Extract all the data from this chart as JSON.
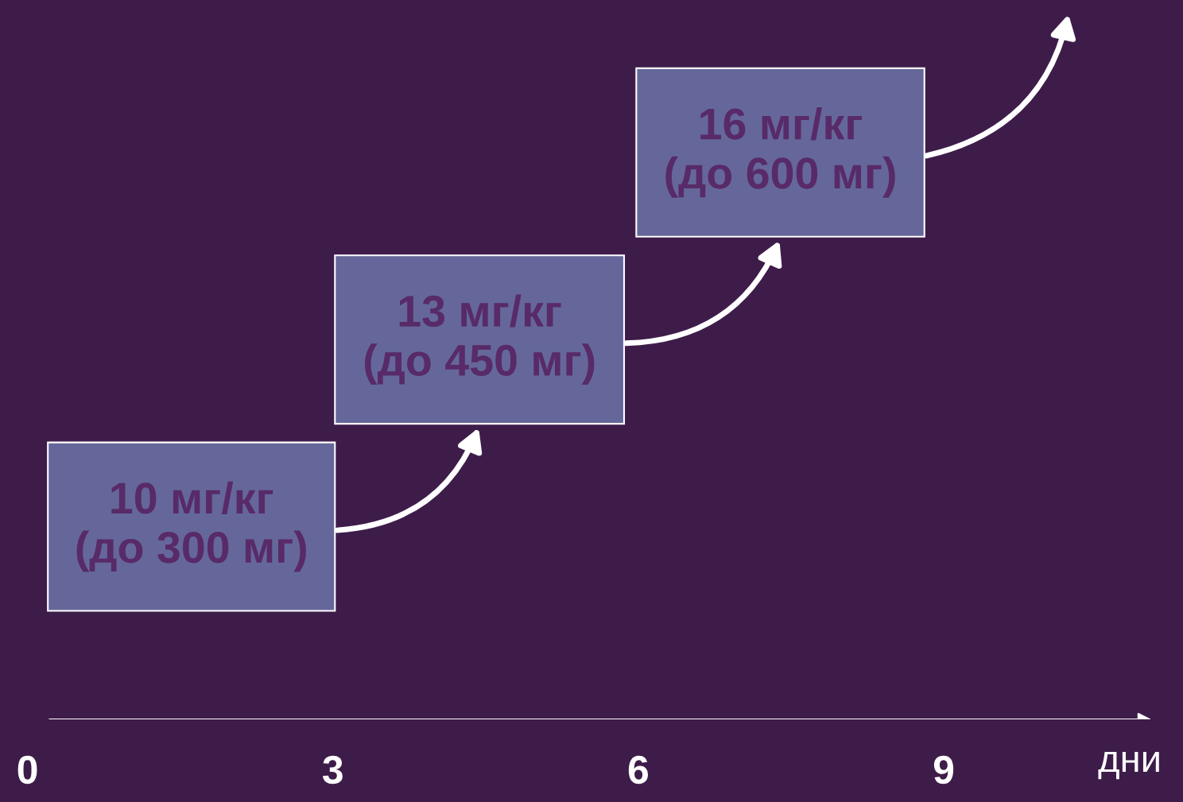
{
  "chart_data": {
    "type": "bar",
    "orientation": "horizontal",
    "categories": [
      null,
      null,
      null
    ],
    "base": [
      5.98,
      3.02,
      0.2
    ],
    "values": [
      2.83,
      2.84,
      2.82
    ],
    "color": "#65679a",
    "xlim": [
      -0.27,
      11.35
    ],
    "xticks": [
      0,
      3,
      6,
      9
    ],
    "xlabel": "дни",
    "annotations": [
      "16 мг/кг\n(до 600 мг)",
      "13 мг/кг\n(до 450 мг)",
      "10 мг/кг\n(до 300 мг)"
    ]
  }
}
